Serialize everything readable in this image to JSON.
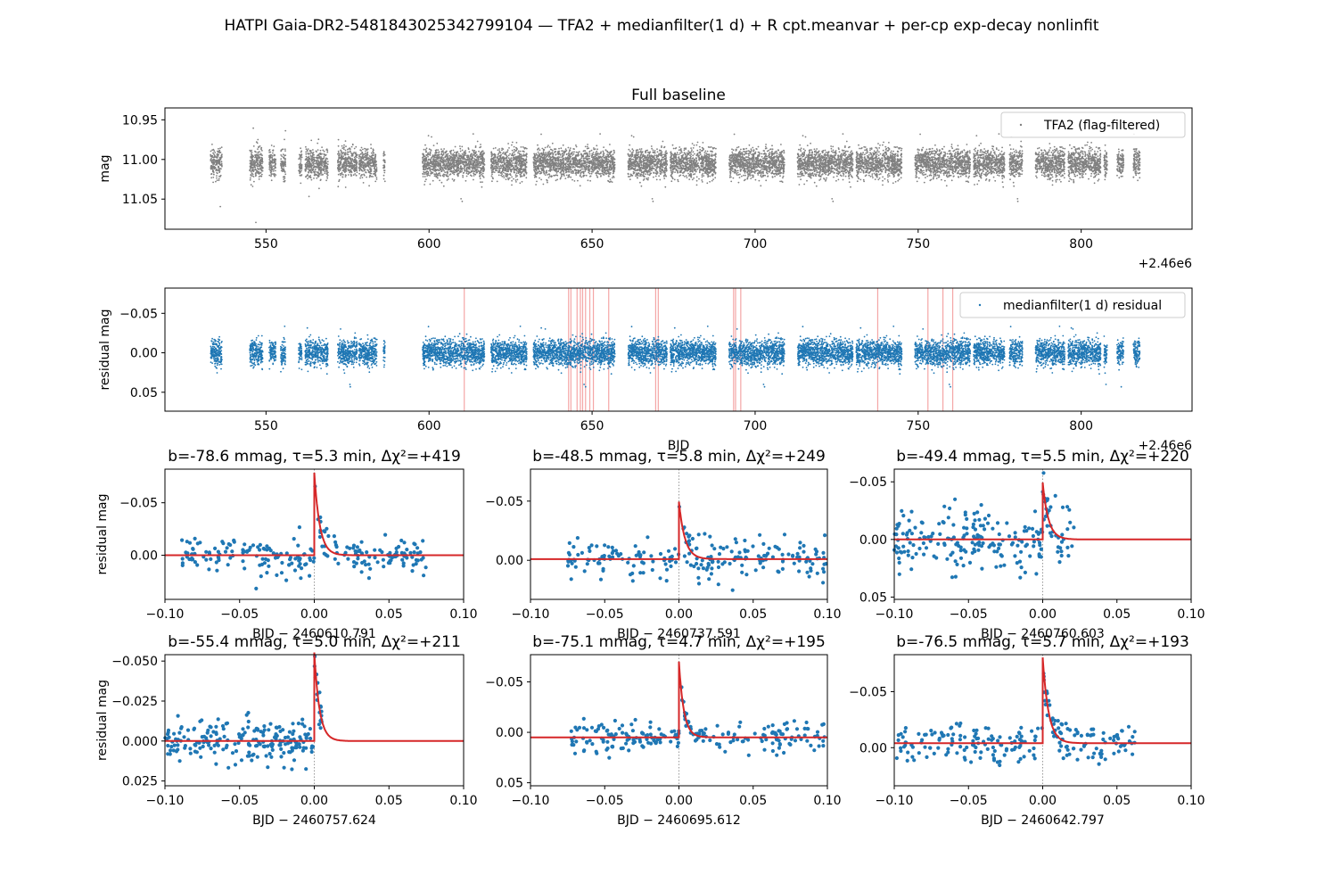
{
  "suptitle": "HATPI Gaia-DR2-5481843025342799104 — TFA2 + medianfilter(1 d) + R cpt.meanvar + per-cp exp-decay nonlinfit",
  "colors": {
    "raw": "#808080",
    "residual": "#1f77b4",
    "fit": "#d62728",
    "changepoint": "#f08080",
    "vline": "#808080"
  },
  "chart_data": [
    {
      "type": "scatter",
      "id": "full-raw",
      "title": "Full baseline",
      "xlabel": "",
      "ylabel": "mag",
      "offset_label": "+2.46e6",
      "xlim": [
        519,
        834
      ],
      "ylim": [
        11.088,
        10.935
      ],
      "xticks": [
        550,
        600,
        650,
        700,
        750,
        800
      ],
      "xticklabels": [
        "550",
        "600",
        "650",
        "700",
        "750",
        "800"
      ],
      "yticks": [
        10.95,
        11.0,
        11.05
      ],
      "yticklabels": [
        "10.95",
        "11.00",
        "11.05"
      ],
      "legend": "TFA2 (flag-filtered)",
      "legend_loc": "upper right",
      "series": {
        "center": 11.005,
        "spread": 0.02,
        "segments": [
          [
            533,
            536.5
          ],
          [
            545,
            549
          ],
          [
            551,
            553
          ],
          [
            554.5,
            556
          ],
          [
            560,
            561
          ],
          [
            562,
            569
          ],
          [
            572,
            578
          ],
          [
            578.5,
            584
          ],
          [
            586,
            586.5
          ],
          [
            598,
            617
          ],
          [
            619,
            630
          ],
          [
            632,
            657
          ],
          [
            661,
            673
          ],
          [
            674,
            688
          ],
          [
            692,
            709
          ],
          [
            713,
            730
          ],
          [
            731,
            745
          ],
          [
            749,
            766
          ],
          [
            767,
            776.5
          ],
          [
            778,
            782
          ],
          [
            786,
            795
          ],
          [
            796,
            806
          ],
          [
            807,
            808
          ],
          [
            811,
            813
          ],
          [
            816,
            818
          ]
        ]
      }
    },
    {
      "type": "scatter",
      "id": "full-residual",
      "title": "",
      "xlabel": "BJD",
      "ylabel": "residual mag",
      "offset_label": "+2.46e6",
      "xlim": [
        519,
        834
      ],
      "ylim": [
        0.074,
        -0.082
      ],
      "xticks": [
        550,
        600,
        650,
        700,
        750,
        800
      ],
      "xticklabels": [
        "550",
        "600",
        "650",
        "700",
        "750",
        "800"
      ],
      "yticks": [
        -0.05,
        0.0,
        0.05
      ],
      "yticklabels": [
        "−0.05",
        "0.00",
        "0.05"
      ],
      "legend": "medianfilter(1 d) residual",
      "legend_loc": "upper right",
      "changepoints": [
        610.8,
        642.8,
        643.5,
        645.4,
        646.4,
        647.1,
        648.0,
        649.3,
        650.4,
        655.1,
        669.5,
        670.3,
        693.4,
        694.0,
        695.6,
        737.6,
        753.0,
        757.6,
        760.6
      ],
      "series": {
        "center": 0.0,
        "spread": 0.018,
        "segments": [
          [
            533,
            536.5
          ],
          [
            545,
            549
          ],
          [
            551,
            553
          ],
          [
            554.5,
            556
          ],
          [
            560,
            561
          ],
          [
            562,
            569
          ],
          [
            572,
            578
          ],
          [
            578.5,
            584
          ],
          [
            586,
            586.5
          ],
          [
            598,
            617
          ],
          [
            619,
            630
          ],
          [
            632,
            657
          ],
          [
            661,
            673
          ],
          [
            674,
            688
          ],
          [
            692,
            709
          ],
          [
            713,
            730
          ],
          [
            731,
            745
          ],
          [
            749,
            766
          ],
          [
            767,
            776.5
          ],
          [
            778,
            782
          ],
          [
            786,
            795
          ],
          [
            796,
            806
          ],
          [
            807,
            808
          ],
          [
            811,
            813
          ],
          [
            816,
            818
          ]
        ]
      }
    },
    {
      "type": "scatter",
      "id": "event-1",
      "title": "b=-78.6 mmag, τ=5.3 min, Δχ²=+419",
      "xlabel": "BJD − 2460610.791",
      "ylabel": "residual mag",
      "xlim": [
        -0.1,
        0.1
      ],
      "ylim": [
        0.042,
        -0.082
      ],
      "xticks": [
        -0.1,
        -0.05,
        0.0,
        0.05,
        0.1
      ],
      "xticklabels": [
        "−0.10",
        "−0.05",
        "0.00",
        "0.05",
        "0.10"
      ],
      "yticks": [
        -0.05,
        0.0
      ],
      "yticklabels": [
        "−0.05",
        "0.00"
      ],
      "fit": {
        "baseline": 0.0,
        "amplitude": -0.0786,
        "tau_days": 0.00368
      },
      "data_range": [
        -0.09,
        0.076
      ],
      "noise": 0.012
    },
    {
      "type": "scatter",
      "id": "event-2",
      "title": "b=-48.5 mmag, τ=5.8 min, Δχ²=+249",
      "xlabel": "BJD − 2460737.591",
      "ylabel": "",
      "xlim": [
        -0.1,
        0.1
      ],
      "ylim": [
        0.033,
        -0.077
      ],
      "xticks": [
        -0.1,
        -0.05,
        0.0,
        0.05,
        0.1
      ],
      "xticklabels": [
        "−0.10",
        "−0.05",
        "0.00",
        "0.05",
        "0.10"
      ],
      "yticks": [
        -0.05,
        0.0
      ],
      "yticklabels": [
        "−0.05",
        "0.00"
      ],
      "fit": {
        "baseline": -0.001,
        "amplitude": -0.0485,
        "tau_days": 0.00403
      },
      "data_range": [
        -0.075,
        0.1
      ],
      "noise": 0.011
    },
    {
      "type": "scatter",
      "id": "event-3",
      "title": "b=-49.4 mmag, τ=5.5 min, Δχ²=+220",
      "xlabel": "BJD − 2460760.603",
      "ylabel": "",
      "xlim": [
        -0.1,
        0.1
      ],
      "ylim": [
        0.052,
        -0.061
      ],
      "xticks": [
        -0.1,
        -0.05,
        0.0,
        0.05,
        0.1
      ],
      "xticklabels": [
        "−0.10",
        "−0.05",
        "0.00",
        "0.05",
        "0.10"
      ],
      "yticks": [
        -0.05,
        0.0,
        0.05
      ],
      "yticklabels": [
        "−0.05",
        "0.00",
        "0.05"
      ],
      "fit": {
        "baseline": 0.0,
        "amplitude": -0.0494,
        "tau_days": 0.00382
      },
      "data_range": [
        -0.1,
        0.021
      ],
      "noise": 0.016
    },
    {
      "type": "scatter",
      "id": "event-4",
      "title": "b=-55.4 mmag, τ=5.0 min, Δχ²=+211",
      "xlabel": "BJD − 2460757.624",
      "ylabel": "residual mag",
      "xlim": [
        -0.1,
        0.1
      ],
      "ylim": [
        0.028,
        -0.054
      ],
      "xticks": [
        -0.1,
        -0.05,
        0.0,
        0.05,
        0.1
      ],
      "xticklabels": [
        "−0.10",
        "−0.05",
        "0.00",
        "0.05",
        "0.10"
      ],
      "yticks": [
        -0.05,
        -0.025,
        0.0,
        0.025
      ],
      "yticklabels": [
        "−0.050",
        "−0.025",
        "0.000",
        "0.025"
      ],
      "fit": {
        "baseline": 0.0,
        "amplitude": -0.0554,
        "tau_days": 0.00347
      },
      "data_range": [
        -0.1,
        0.005
      ],
      "noise": 0.008
    },
    {
      "type": "scatter",
      "id": "event-5",
      "title": "b=-75.1 mmag, τ=4.7 min, Δχ²=+195",
      "xlabel": "BJD − 2460695.612",
      "ylabel": "",
      "xlim": [
        -0.1,
        0.1
      ],
      "ylim": [
        0.053,
        -0.077
      ],
      "xticks": [
        -0.1,
        -0.05,
        0.0,
        0.05,
        0.1
      ],
      "xticklabels": [
        "−0.10",
        "−0.05",
        "0.00",
        "0.05",
        "0.10"
      ],
      "yticks": [
        -0.05,
        0.0,
        0.05
      ],
      "yticklabels": [
        "−0.05",
        "0.00",
        "0.05"
      ],
      "fit": {
        "baseline": 0.005,
        "amplitude": -0.0751,
        "tau_days": 0.00326
      },
      "data_range": [
        -0.073,
        0.1
      ],
      "noise": 0.009
    },
    {
      "type": "scatter",
      "id": "event-6",
      "title": "b=-76.5 mmag, τ=5.7 min, Δχ²=+193",
      "xlabel": "BJD − 2460642.797",
      "ylabel": "",
      "xlim": [
        -0.1,
        0.1
      ],
      "ylim": [
        0.034,
        -0.083
      ],
      "xticks": [
        -0.1,
        -0.05,
        0.0,
        0.05,
        0.1
      ],
      "xticklabels": [
        "−0.10",
        "−0.05",
        "0.00",
        "0.05",
        "0.10"
      ],
      "yticks": [
        -0.05,
        0.0
      ],
      "yticklabels": [
        "−0.05",
        "0.00"
      ],
      "fit": {
        "baseline": -0.004,
        "amplitude": -0.0765,
        "tau_days": 0.00396
      },
      "data_range": [
        -0.1,
        0.062
      ],
      "noise": 0.011
    }
  ]
}
